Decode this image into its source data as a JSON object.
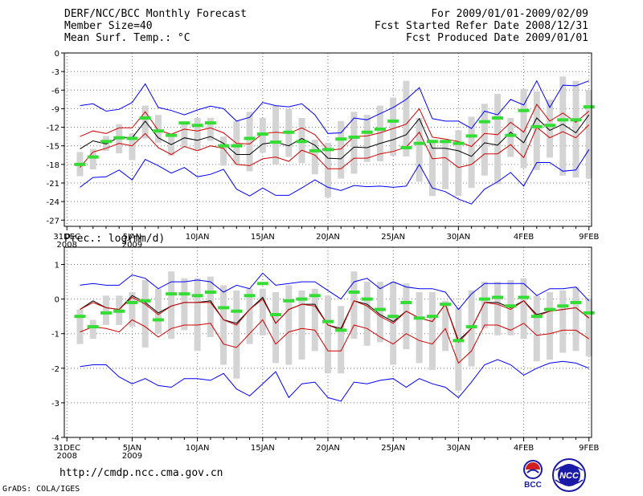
{
  "header": {
    "title": "DERF/NCC/BCC Monthly Forecast",
    "member_size": "Member Size=40",
    "period": "For 2009/01/01-2009/02/09",
    "fcst_started": "Fcst Started Refer Date 2008/12/31",
    "fcst_produced": "Fcst Produced Date 2009/01/01"
  },
  "footer": {
    "url": "http://cmdp.ncc.cma.gov.cn",
    "grads": "GrADS: COLA/IGES",
    "logo_bcc": "BCC",
    "logo_ncc": "NCC"
  },
  "colors": {
    "envelope": "#0000ff",
    "spread": "#d00000",
    "mean": "#000000",
    "observed": "#33dd33",
    "box": "#d4d4d4"
  },
  "chart_data": [
    {
      "type": "line",
      "title": "Mean Surf. Temp.: °C",
      "ylim": [
        -28,
        0
      ],
      "yticks": [
        0,
        -3,
        -6,
        -9,
        -12,
        -15,
        -18,
        -21,
        -24,
        -27
      ],
      "ytick_labels": [
        "0",
        "-3",
        "-6",
        "-9",
        "-12",
        "-15",
        "-18",
        "-21",
        "-24",
        "-27"
      ],
      "xlim": [
        -0.2,
        40.2
      ],
      "xticks": [
        0,
        5,
        10,
        15,
        20,
        25,
        30,
        35,
        40
      ],
      "xtick_labels": [
        "31DEC\n2008",
        "5JAN\n2009",
        "10JAN",
        "15JAN",
        "20JAN",
        "25JAN",
        "30JAN",
        "4FEB",
        "9FEB"
      ],
      "x": [
        1,
        2,
        3,
        4,
        5,
        6,
        7,
        8,
        9,
        10,
        11,
        12,
        13,
        14,
        15,
        16,
        17,
        18,
        19,
        20,
        21,
        22,
        23,
        24,
        25,
        26,
        27,
        28,
        29,
        30,
        31,
        32,
        33,
        34,
        35,
        36,
        37,
        38,
        39,
        40
      ],
      "series": [
        {
          "name": "Max",
          "role": "envelope",
          "values": [
            -8.5,
            -8.2,
            -9.4,
            -9.1,
            -8.0,
            -5.0,
            -8.8,
            -9.3,
            -10.0,
            -9.2,
            -8.6,
            -9.0,
            -11.0,
            -10.4,
            -8.0,
            -8.5,
            -8.7,
            -8.2,
            -10.0,
            -13.0,
            -12.9,
            -10.5,
            -10.8,
            -9.8,
            -8.8,
            -7.5,
            -5.6,
            -10.6,
            -11.0,
            -11.0,
            -12.2,
            -9.4,
            -10.0,
            -7.5,
            -8.4,
            -4.5,
            -8.8,
            -5.2,
            -5.3,
            -4.5
          ]
        },
        {
          "name": "Upper",
          "role": "spread",
          "values": [
            -13.5,
            -12.6,
            -13.0,
            -12.1,
            -12.1,
            -9.5,
            -12.5,
            -13.1,
            -12.3,
            -12.6,
            -12.1,
            -12.9,
            -14.6,
            -14.7,
            -13.0,
            -12.8,
            -13.0,
            -12.1,
            -13.2,
            -15.7,
            -15.5,
            -13.5,
            -13.4,
            -12.9,
            -12.2,
            -11.5,
            -9.0,
            -13.6,
            -13.9,
            -14.3,
            -15.1,
            -13.0,
            -13.2,
            -11.2,
            -12.8,
            -8.3,
            -11.0,
            -9.7,
            -11.2,
            -9.4
          ]
        },
        {
          "name": "Mean",
          "role": "mean",
          "values": [
            -15.5,
            -14.2,
            -14.7,
            -13.6,
            -13.7,
            -11.0,
            -13.7,
            -14.8,
            -13.7,
            -14.1,
            -13.5,
            -14.6,
            -16.4,
            -16.4,
            -14.7,
            -14.4,
            -15.0,
            -13.8,
            -14.9,
            -17.0,
            -17.1,
            -15.2,
            -15.3,
            -14.6,
            -14.0,
            -13.2,
            -10.6,
            -15.4,
            -15.4,
            -15.8,
            -16.7,
            -14.5,
            -14.9,
            -12.8,
            -14.5,
            -10.5,
            -12.5,
            -11.5,
            -12.9,
            -10.0
          ]
        },
        {
          "name": "Lower",
          "role": "spread",
          "values": [
            -18.5,
            -16.0,
            -15.4,
            -14.6,
            -15.0,
            -13.0,
            -15.3,
            -16.4,
            -15.1,
            -15.8,
            -15.0,
            -15.4,
            -18.0,
            -18.2,
            -17.1,
            -16.8,
            -17.5,
            -15.7,
            -16.5,
            -18.7,
            -18.7,
            -17.0,
            -17.0,
            -16.3,
            -15.9,
            -15.2,
            -12.8,
            -17.1,
            -16.9,
            -18.5,
            -18.0,
            -16.3,
            -16.3,
            -14.8,
            -16.9,
            -12.0,
            -13.7,
            -12.7,
            -13.7,
            -11.6
          ]
        },
        {
          "name": "Min",
          "role": "envelope",
          "values": [
            -21.7,
            -20.1,
            -20.0,
            -18.9,
            -20.5,
            -17.2,
            -18.2,
            -19.4,
            -18.5,
            -20.0,
            -19.6,
            -18.8,
            -22.0,
            -23.1,
            -21.8,
            -23.0,
            -23.0,
            -21.8,
            -20.5,
            -21.7,
            -22.2,
            -21.4,
            -21.6,
            -21.5,
            -21.7,
            -21.5,
            -18.0,
            -21.8,
            -22.4,
            -23.6,
            -24.4,
            -22.0,
            -20.8,
            -19.3,
            -21.5,
            -17.7,
            -17.7,
            -19.1,
            -18.9,
            -15.6
          ]
        },
        {
          "name": "Observed",
          "role": "observed",
          "values": [
            -18.0,
            -16.8,
            -14.3,
            -13.7,
            -13.8,
            -10.5,
            -12.6,
            -13.3,
            -11.3,
            -11.7,
            -11.3,
            -15.0,
            -15.0,
            -13.8,
            -13.1,
            -14.4,
            -12.8,
            -14.3,
            -15.8,
            -15.6,
            -13.9,
            -13.6,
            -12.8,
            -12.3,
            -11.0,
            -15.3,
            -14.6,
            -14.3,
            -14.3,
            -14.6,
            -13.4,
            -11.1,
            -10.5,
            -13.3,
            -9.3,
            -11.9,
            -11.7,
            -10.8,
            -10.8,
            -8.7
          ]
        },
        {
          "name": "Box top",
          "role": "box_top",
          "values": [
            -16.0,
            -15.5,
            -13.4,
            -11.5,
            -13.0,
            -8.5,
            -10.0,
            -13.0,
            -11.5,
            -10.5,
            -10.5,
            -13.5,
            -11.0,
            -9.5,
            -10.5,
            -8.5,
            -9.0,
            -10.5,
            -14.0,
            -14.5,
            -11.0,
            -9.5,
            -10.0,
            -8.5,
            -7.2,
            -4.5,
            -10.5,
            -14.0,
            -14.0,
            -12.5,
            -10.3,
            -8.2,
            -6.6,
            -10.5,
            -5.8,
            -6.2,
            -7.5,
            -3.8,
            -4.5,
            -6.0
          ]
        },
        {
          "name": "Box bottom",
          "role": "box_bottom",
          "values": [
            -19.9,
            -18.8,
            -15.8,
            -16.2,
            -17.3,
            -13.8,
            -14.5,
            -16.6,
            -15.2,
            -15.7,
            -14.2,
            -18.2,
            -18.1,
            -19.1,
            -16.1,
            -18.0,
            -16.8,
            -17.8,
            -19.6,
            -23.3,
            -20.3,
            -19.5,
            -17.6,
            -17.5,
            -16.6,
            -16.7,
            -20.8,
            -23.1,
            -22.0,
            -23.1,
            -21.8,
            -19.8,
            -21.2,
            -16.8,
            -18.6,
            -18.9,
            -16.9,
            -19.8,
            -20.1,
            -20.3
          ]
        }
      ]
    },
    {
      "type": "line",
      "title": "Prec.: log(mm/d)",
      "ylim": [
        -4,
        1.5
      ],
      "yticks": [
        1,
        0,
        -1,
        -2,
        -3,
        -4
      ],
      "ytick_labels": [
        "1",
        "0",
        "-1",
        "-2",
        "-3",
        "-4"
      ],
      "xlim": [
        -0.2,
        40.2
      ],
      "xticks": [
        0,
        5,
        10,
        15,
        20,
        25,
        30,
        35,
        40
      ],
      "xtick_labels": [
        "31DEC\n2008",
        "5JAN\n2009",
        "10JAN",
        "15JAN",
        "20JAN",
        "25JAN",
        "30JAN",
        "4FEB",
        "9FEB"
      ],
      "x": [
        1,
        2,
        3,
        4,
        5,
        6,
        7,
        8,
        9,
        10,
        11,
        12,
        13,
        14,
        15,
        16,
        17,
        18,
        19,
        20,
        21,
        22,
        23,
        24,
        25,
        26,
        27,
        28,
        29,
        30,
        31,
        32,
        33,
        34,
        35,
        36,
        37,
        38,
        39,
        40
      ],
      "series": [
        {
          "name": "Max",
          "role": "envelope",
          "values": [
            0.4,
            0.45,
            0.4,
            0.4,
            0.7,
            0.6,
            0.3,
            0.5,
            0.5,
            0.55,
            0.5,
            0.2,
            0.4,
            0.3,
            0.75,
            0.4,
            0.45,
            0.5,
            0.5,
            0.25,
            0.0,
            0.5,
            0.6,
            0.3,
            0.5,
            0.35,
            0.3,
            0.3,
            0.2,
            -0.3,
            0.15,
            0.45,
            0.45,
            0.45,
            0.45,
            0.1,
            0.3,
            0.3,
            0.35,
            -0.05
          ]
        },
        {
          "name": "Mean",
          "role": "mean",
          "values": [
            -0.3,
            -0.05,
            -0.25,
            -0.3,
            0.1,
            -0.1,
            -0.4,
            -0.2,
            -0.1,
            -0.1,
            -0.05,
            -0.6,
            -0.7,
            -0.3,
            0.05,
            -0.7,
            -0.3,
            -0.15,
            -0.15,
            -0.75,
            -0.85,
            -0.05,
            -0.15,
            -0.45,
            -0.65,
            -0.35,
            -0.55,
            -0.65,
            -0.15,
            -1.2,
            -0.85,
            -0.1,
            -0.1,
            -0.25,
            -0.05,
            -0.45,
            -0.35,
            -0.3,
            -0.25,
            -0.55
          ]
        },
        {
          "name": "Upper",
          "role": "spread",
          "values": [
            -0.3,
            -0.1,
            -0.25,
            -0.3,
            0.05,
            -0.15,
            -0.45,
            -0.2,
            -0.1,
            -0.1,
            -0.1,
            -0.6,
            -0.75,
            -0.3,
            0.0,
            -0.7,
            -0.3,
            -0.15,
            -0.2,
            -0.75,
            -0.9,
            -0.05,
            -0.2,
            -0.5,
            -0.7,
            -0.35,
            -0.55,
            -0.65,
            -0.15,
            -1.25,
            -0.85,
            -0.1,
            -0.15,
            -0.3,
            -0.05,
            -0.5,
            -0.35,
            -0.3,
            -0.25,
            -0.55
          ]
        },
        {
          "name": "Lower",
          "role": "spread",
          "values": [
            -0.95,
            -0.8,
            -0.85,
            -0.95,
            -0.6,
            -0.8,
            -1.1,
            -0.85,
            -0.75,
            -0.75,
            -0.7,
            -1.3,
            -1.4,
            -1.0,
            -0.6,
            -1.3,
            -0.95,
            -0.85,
            -0.9,
            -1.5,
            -1.5,
            -0.75,
            -0.85,
            -1.1,
            -1.3,
            -1.0,
            -1.2,
            -1.3,
            -0.85,
            -1.85,
            -1.5,
            -0.75,
            -0.75,
            -0.9,
            -0.7,
            -1.05,
            -1.0,
            -0.9,
            -0.9,
            -1.15
          ]
        },
        {
          "name": "Min",
          "role": "envelope",
          "values": [
            -1.95,
            -1.9,
            -1.9,
            -2.25,
            -2.45,
            -2.3,
            -2.5,
            -2.55,
            -2.3,
            -2.3,
            -2.35,
            -2.15,
            -2.6,
            -2.8,
            -2.45,
            -2.1,
            -2.85,
            -2.45,
            -2.4,
            -2.85,
            -2.95,
            -2.4,
            -2.45,
            -2.35,
            -2.3,
            -2.55,
            -2.3,
            -2.45,
            -2.55,
            -2.85,
            -2.4,
            -1.9,
            -1.75,
            -1.9,
            -2.2,
            -2.0,
            -1.85,
            -1.8,
            -1.85,
            -2.0
          ]
        },
        {
          "name": "Observed",
          "role": "observed",
          "values": [
            -0.5,
            -0.8,
            -0.4,
            -0.35,
            -0.1,
            -0.05,
            -0.6,
            0.15,
            0.15,
            0.1,
            0.2,
            -0.25,
            -0.35,
            0.1,
            0.45,
            -0.45,
            -0.05,
            0.0,
            0.1,
            -0.65,
            -0.9,
            0.2,
            0.0,
            -0.3,
            -0.5,
            -0.1,
            -0.55,
            -0.5,
            -0.15,
            -1.2,
            -0.8,
            0.0,
            0.05,
            -0.2,
            0.05,
            -0.5,
            -0.3,
            -0.2,
            -0.1,
            -0.4
          ]
        },
        {
          "name": "Box top",
          "role": "box_top",
          "values": [
            -0.3,
            -0.6,
            0.1,
            0.1,
            0.2,
            0.55,
            0.3,
            0.8,
            0.6,
            0.6,
            0.65,
            0.4,
            0.25,
            0.3,
            0.3,
            0.2,
            0.4,
            0.25,
            0.3,
            0.1,
            -0.2,
            0.8,
            0.5,
            0.5,
            0.5,
            0.45,
            0.2,
            0.2,
            -0.05,
            -0.25,
            0.25,
            0.5,
            0.5,
            0.55,
            0.6,
            0.1,
            0.2,
            0.25,
            0.35,
            0.0
          ]
        },
        {
          "name": "Box bottom",
          "role": "box_bottom",
          "values": [
            -1.3,
            -1.15,
            -0.75,
            -0.75,
            -0.8,
            -1.4,
            -1.0,
            -1.15,
            -0.9,
            -1.5,
            -1.1,
            -1.9,
            -2.3,
            -1.3,
            -1.05,
            -1.85,
            -1.9,
            -1.75,
            -1.5,
            -2.15,
            -2.15,
            -1.15,
            -1.35,
            -1.25,
            -1.9,
            -1.45,
            -1.85,
            -2.05,
            -1.5,
            -2.65,
            -1.95,
            -0.85,
            -1.05,
            -1.05,
            -1.15,
            -1.8,
            -1.75,
            -1.55,
            -1.5,
            -1.65
          ]
        }
      ]
    }
  ]
}
